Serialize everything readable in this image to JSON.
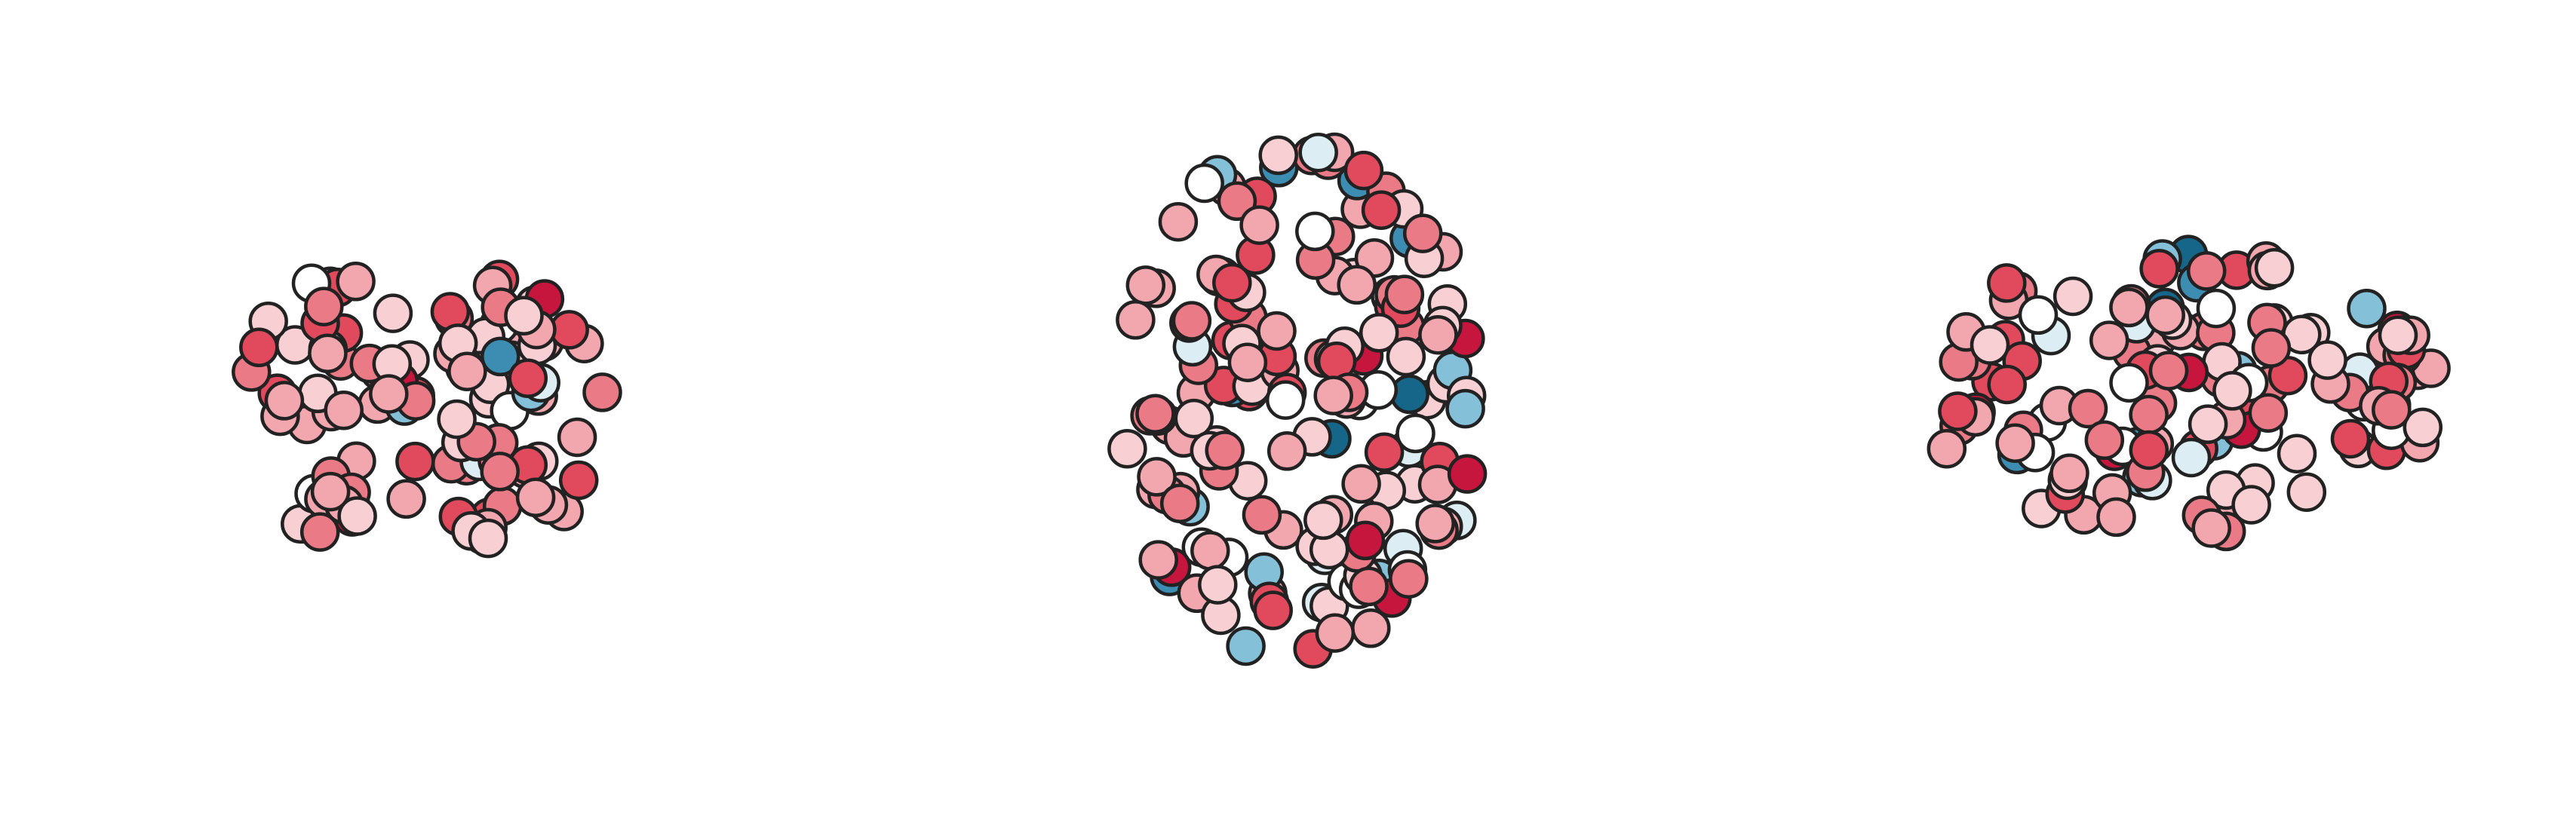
{
  "palette": [
    "#16668a",
    "#3d8db3",
    "#84c1d9",
    "#dcedf3",
    "#ffffff",
    "#f8d0d4",
    "#f2a6ae",
    "#ea7a85",
    "#e14a5d",
    "#c7163d"
  ],
  "views": [
    {
      "nodes": [
        6,
        7,
        5,
        8,
        6,
        5,
        7,
        4,
        6,
        8,
        5,
        7,
        6,
        9,
        5,
        6,
        7,
        3,
        6,
        8,
        5,
        4,
        7,
        6,
        8,
        5,
        6,
        7,
        2,
        5,
        8,
        6,
        7,
        5,
        4,
        6,
        8,
        7,
        5,
        6,
        9,
        6,
        5,
        7,
        8,
        6,
        3,
        5,
        7,
        6,
        8,
        5,
        6,
        7,
        4,
        6,
        5,
        8,
        7,
        6,
        1,
        5,
        6,
        8,
        7,
        5,
        6,
        4,
        7,
        8,
        6,
        5,
        7,
        6,
        9,
        5,
        6,
        8,
        7,
        5,
        2,
        6,
        7,
        5,
        8,
        6,
        4,
        7,
        6,
        5,
        8,
        7,
        6,
        5,
        6,
        7,
        8,
        5,
        6,
        3,
        7,
        6,
        5,
        8,
        6,
        7,
        5,
        6,
        8,
        7
      ]
    },
    {
      "nodes": [
        4,
        5,
        3,
        2,
        6,
        7,
        4,
        5,
        1,
        2,
        3,
        8,
        6,
        5,
        0,
        1,
        7,
        6,
        9,
        2,
        5,
        6,
        4,
        8,
        0,
        1,
        2,
        6,
        5,
        7,
        3,
        9,
        8,
        6,
        1,
        0,
        2,
        5,
        7,
        4,
        6,
        8,
        2,
        1,
        5,
        6,
        9,
        7,
        3,
        4,
        5,
        6,
        8,
        7,
        6,
        5,
        2,
        4,
        6,
        7,
        8,
        5,
        3,
        6,
        7,
        5,
        8,
        6,
        4,
        5,
        7,
        6,
        3,
        8,
        5,
        6,
        7,
        4,
        9,
        6,
        5,
        7,
        8,
        6,
        5,
        4,
        7,
        6,
        8,
        5,
        6,
        7,
        5,
        8,
        6,
        3,
        7,
        5,
        6,
        8,
        7,
        6,
        5,
        9,
        6,
        7,
        5,
        8,
        6,
        4,
        7,
        6,
        5,
        8,
        7,
        6,
        5,
        7,
        6,
        8,
        5,
        6,
        7,
        5,
        8,
        6,
        4,
        7,
        5,
        6,
        8,
        7,
        5,
        6,
        9,
        7,
        6,
        5,
        8,
        6,
        7,
        4,
        5,
        6,
        8,
        7,
        6,
        5,
        7,
        6,
        8,
        5,
        7,
        6,
        5,
        8,
        6,
        7,
        5,
        6
      ]
    },
    {
      "nodes": [
        0,
        1,
        6,
        7,
        2,
        4,
        5,
        8,
        9,
        0,
        1,
        3,
        6,
        7,
        8,
        2,
        4,
        6,
        5,
        7,
        9,
        1,
        2,
        6,
        8,
        7,
        5,
        4,
        3,
        6,
        7,
        8,
        5,
        2,
        6,
        9,
        7,
        5,
        4,
        6,
        8,
        3,
        7,
        5,
        6,
        8,
        7,
        2,
        6,
        5,
        9,
        7,
        4,
        6,
        8,
        5,
        7,
        6,
        3,
        8,
        5,
        6,
        7,
        4,
        6,
        8,
        7,
        5,
        6,
        7,
        9,
        5,
        6,
        8,
        7,
        4,
        6,
        5,
        7,
        8,
        6,
        5,
        3,
        7,
        6,
        8,
        5,
        7,
        6,
        4,
        8,
        6,
        7,
        5,
        6,
        8,
        7,
        5,
        6,
        7,
        8,
        5,
        6,
        4,
        7,
        6,
        8,
        5,
        7,
        6,
        5,
        8,
        7,
        6,
        5,
        7,
        6,
        8,
        5,
        6,
        7,
        4,
        8,
        6,
        5,
        7,
        6,
        8,
        5,
        7
      ]
    }
  ]
}
